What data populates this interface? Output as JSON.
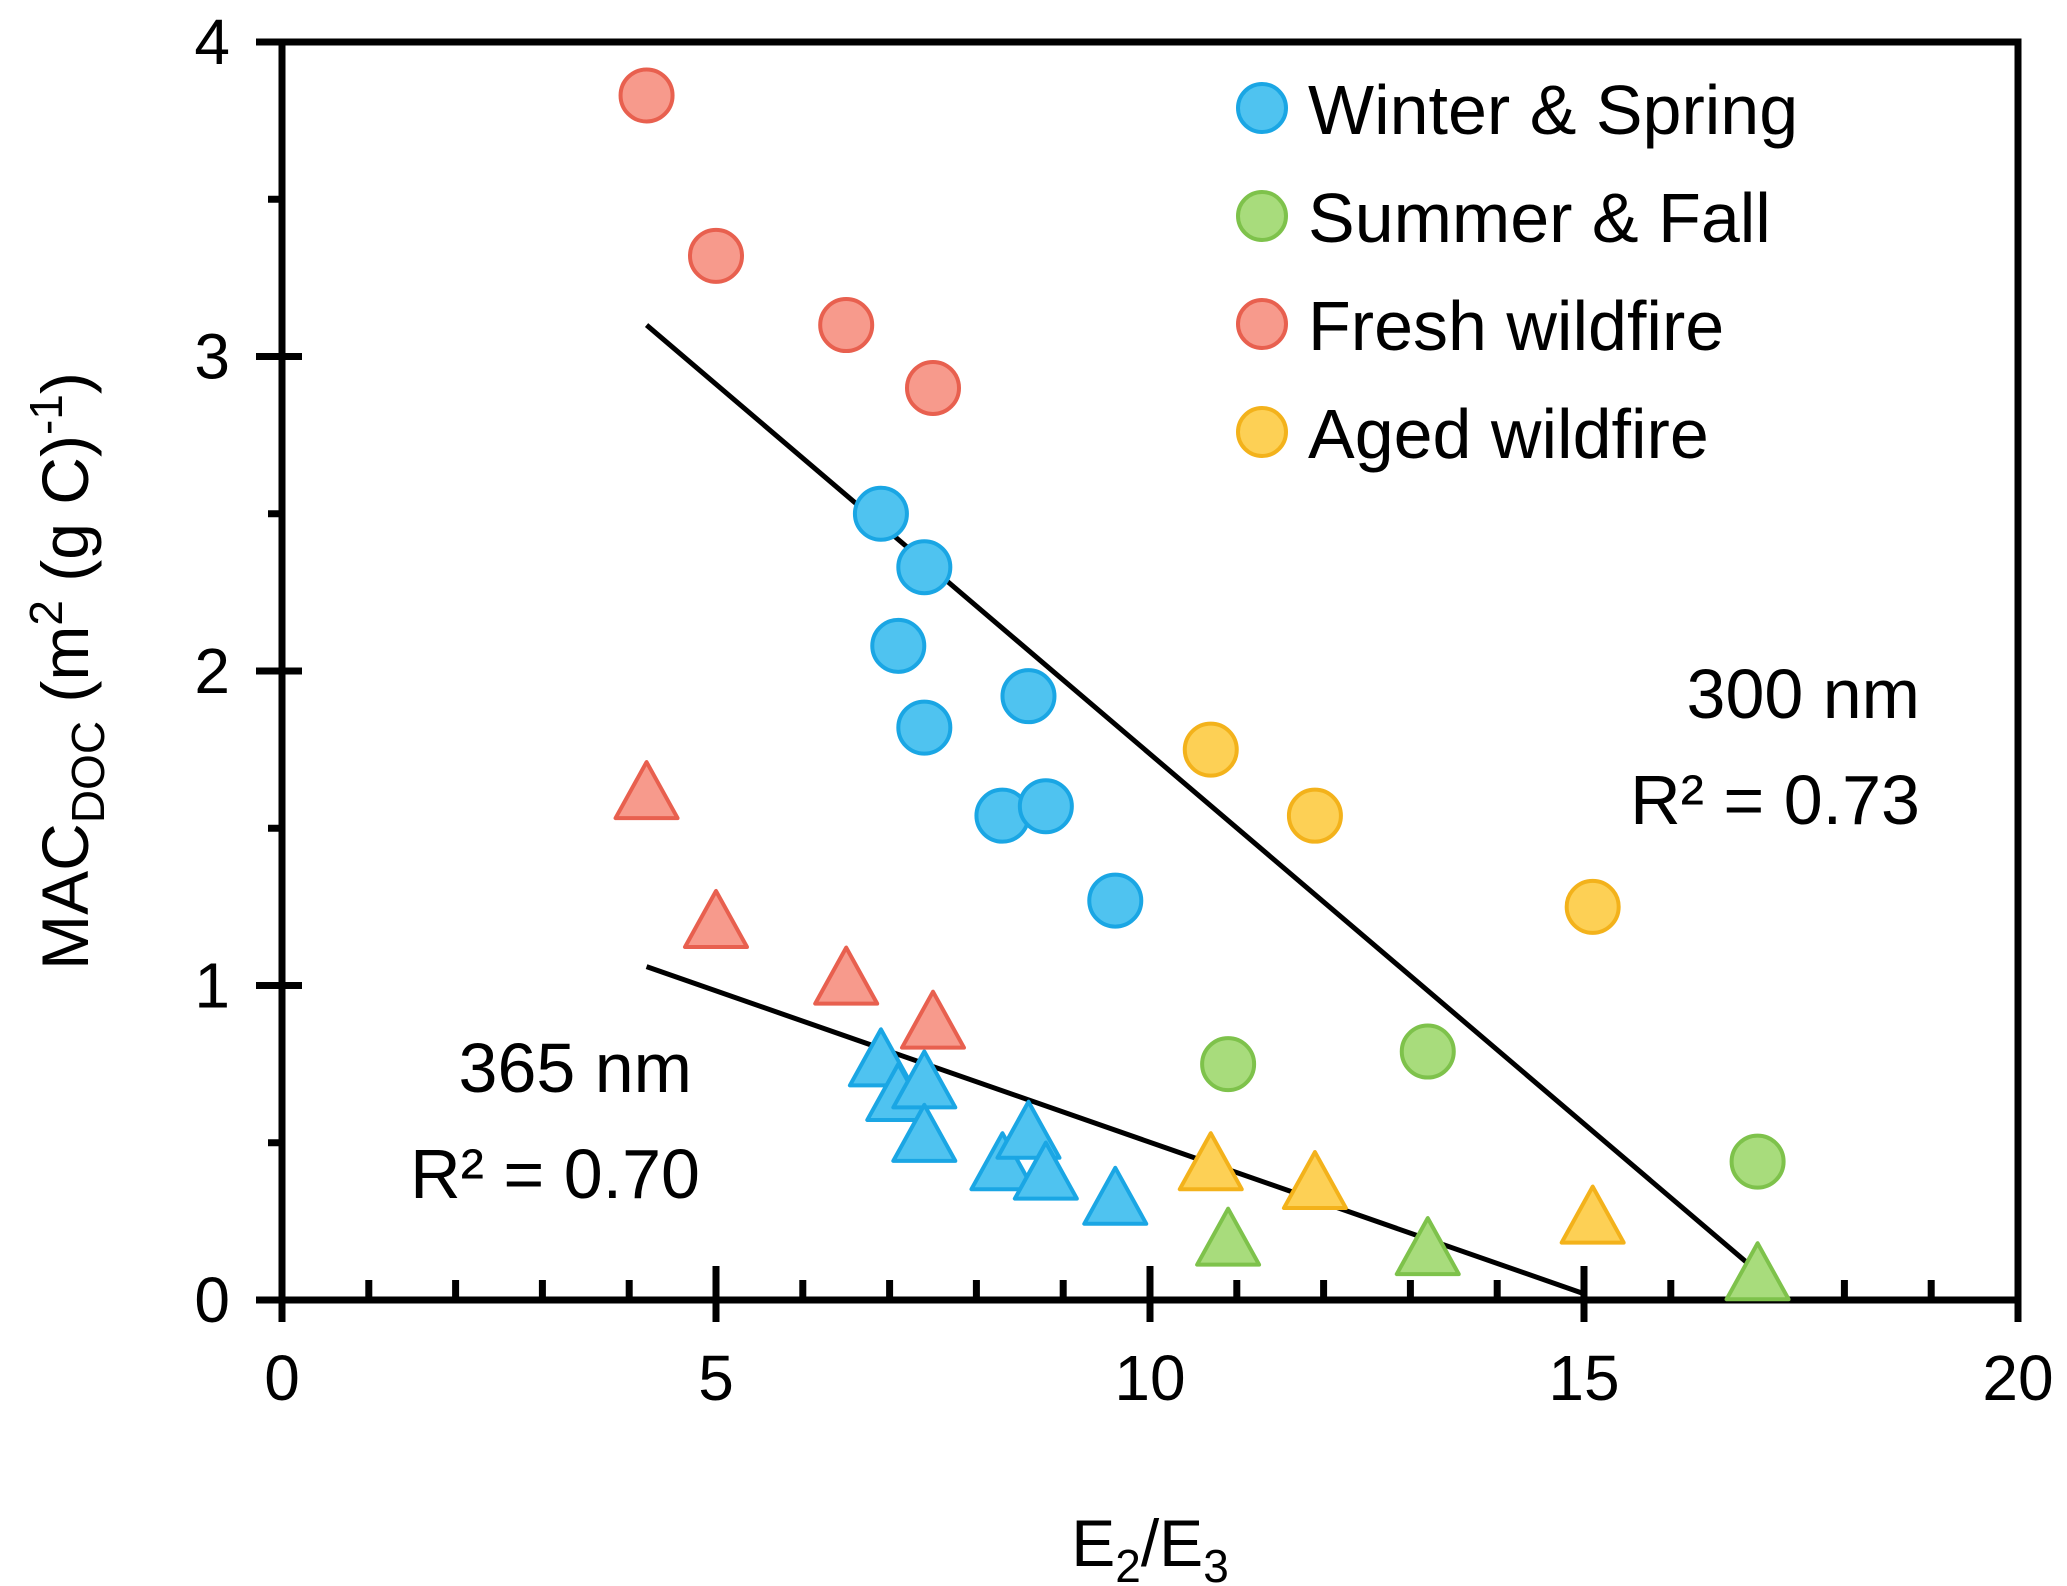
{
  "chart_data": {
    "type": "scatter",
    "xlabel": {
      "main": "E",
      "sub1": "2",
      "slash": "/",
      "main2": "E",
      "sub2": "3"
    },
    "ylabel": {
      "pre": "MAC",
      "sub": "DOC",
      "mid": " (m",
      "sup1": "2",
      "mid2": " (g C)",
      "sup2": "-1",
      "post": ")"
    },
    "xlim": [
      0,
      20
    ],
    "ylim": [
      0,
      4
    ],
    "x_ticks": [
      "0",
      "5",
      "10",
      "15",
      "20"
    ],
    "y_ticks": [
      "0",
      "1",
      "2",
      "3",
      "4"
    ],
    "grid": false,
    "legend_position": "top-right",
    "series": [
      {
        "name": "Winter & Spring",
        "color": "#4fc3f0",
        "stroke": "#1aa6e4",
        "mac300": [
          [
            6.9,
            2.5
          ],
          [
            7.4,
            2.33
          ],
          [
            7.1,
            2.08
          ],
          [
            7.4,
            1.82
          ],
          [
            8.6,
            1.92
          ],
          [
            8.3,
            1.54
          ],
          [
            8.8,
            1.57
          ],
          [
            9.6,
            1.27
          ]
        ],
        "mac365": [
          [
            6.9,
            0.75
          ],
          [
            7.1,
            0.64
          ],
          [
            7.4,
            0.68
          ],
          [
            7.4,
            0.51
          ],
          [
            8.3,
            0.42
          ],
          [
            8.6,
            0.52
          ],
          [
            8.8,
            0.39
          ],
          [
            9.6,
            0.31
          ]
        ]
      },
      {
        "name": "Summer & Fall",
        "color": "#a8dc7c",
        "stroke": "#7ec24b",
        "mac300": [
          [
            10.9,
            0.75
          ],
          [
            13.2,
            0.79
          ],
          [
            17.0,
            0.44
          ]
        ],
        "mac365": [
          [
            10.9,
            0.18
          ],
          [
            13.2,
            0.15
          ],
          [
            17.0,
            0.07
          ]
        ]
      },
      {
        "name": "Fresh wildfire",
        "color": "#f79a8c",
        "stroke": "#e8604f",
        "mac300": [
          [
            4.2,
            3.83
          ],
          [
            5.0,
            3.32
          ],
          [
            6.5,
            3.1
          ],
          [
            7.5,
            2.9
          ]
        ],
        "mac365": [
          [
            4.2,
            1.6
          ],
          [
            5.0,
            1.19
          ],
          [
            6.5,
            1.01
          ],
          [
            7.5,
            0.87
          ]
        ]
      },
      {
        "name": "Aged wildfire",
        "color": "#fdd055",
        "stroke": "#f3b21b",
        "mac300": [
          [
            10.7,
            1.75
          ],
          [
            11.9,
            1.54
          ],
          [
            15.1,
            1.25
          ]
        ],
        "mac365": [
          [
            10.7,
            0.42
          ],
          [
            11.9,
            0.36
          ],
          [
            15.1,
            0.25
          ]
        ]
      }
    ],
    "fit_lines": [
      {
        "x1": 4.2,
        "y1": 3.1,
        "x2": 17.0,
        "y2": 0.09
      },
      {
        "x1": 4.2,
        "y1": 1.06,
        "x2": 15.0,
        "y2": 0.02
      }
    ],
    "annotations": {
      "a300_line1": "300 nm",
      "a300_line2": "R² = 0.73",
      "a365_line1": "365 nm",
      "a365_line2": "R² = 0.70"
    }
  }
}
